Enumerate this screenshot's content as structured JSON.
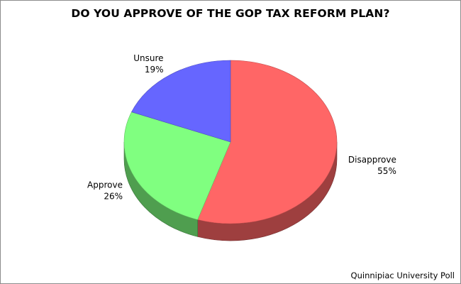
{
  "chart_data": {
    "type": "pie",
    "title": "DO YOU APPROVE OF THE GOP TAX REFORM PLAN?",
    "start_angle_deg": 0,
    "direction": "clockwise",
    "three_d": true,
    "slices": [
      {
        "label": "Disapprove",
        "value": 55,
        "value_label": "55%",
        "color": "#ff6666"
      },
      {
        "label": "Approve",
        "value": 26,
        "value_label": "26%",
        "color": "#80ff80"
      },
      {
        "label": "Unsure",
        "value": 19,
        "value_label": "19%",
        "color": "#6666ff"
      }
    ],
    "source": "Quinnipiac University Poll"
  }
}
